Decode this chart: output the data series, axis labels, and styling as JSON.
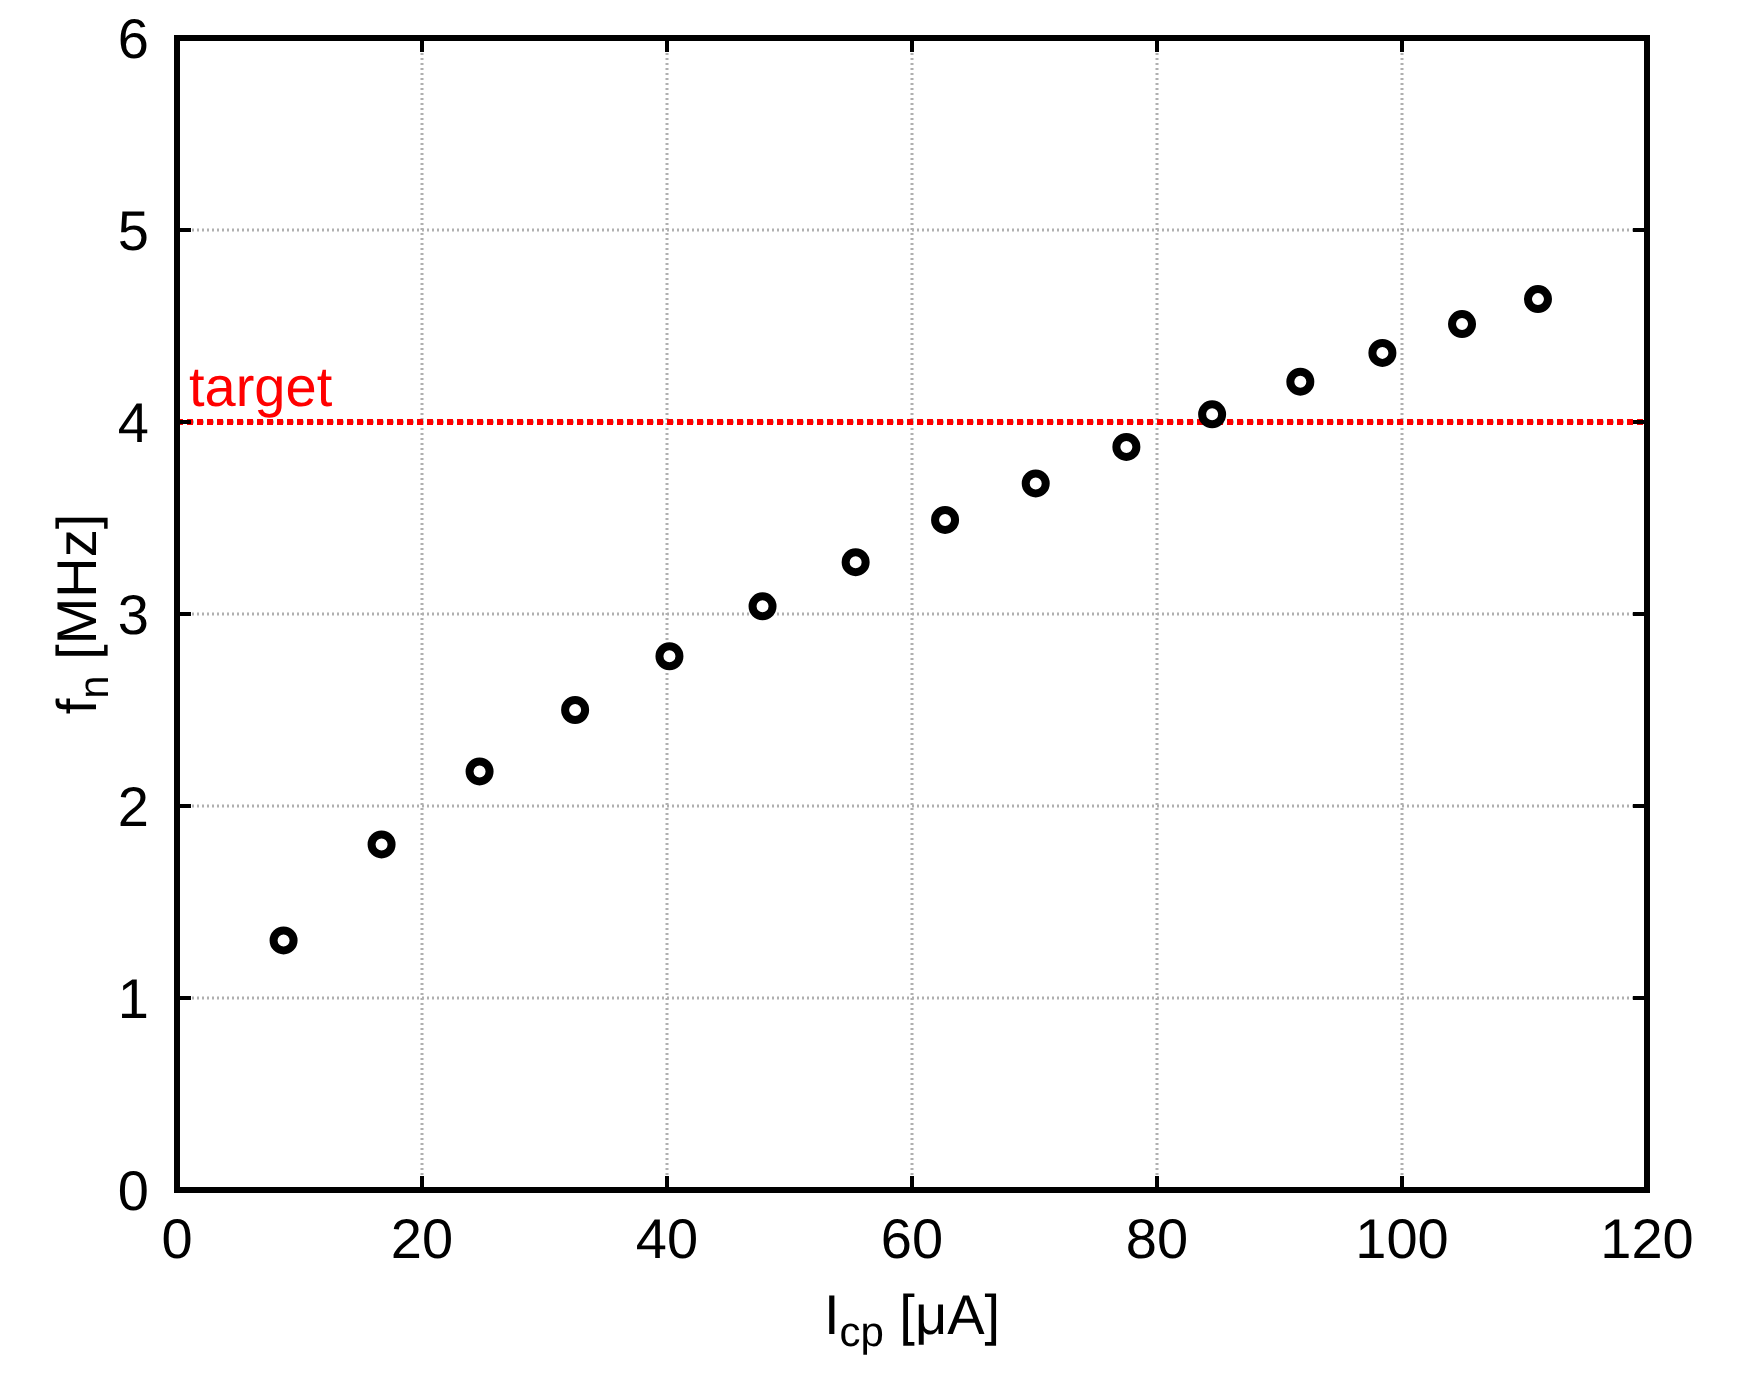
{
  "chart_data": {
    "type": "scatter",
    "xlabel": "I$_{cp}$ [μA]",
    "ylabel": "f$_{n}$ [MHz]",
    "x": [
      8.7,
      16.7,
      24.7,
      32.5,
      40.2,
      47.8,
      55.4,
      62.7,
      70.1,
      77.5,
      84.5,
      91.7,
      98.4,
      104.9,
      111.1
    ],
    "values": [
      1.3,
      1.8,
      2.18,
      2.5,
      2.78,
      3.04,
      3.27,
      3.49,
      3.68,
      3.87,
      4.04,
      4.21,
      4.36,
      4.51,
      4.64
    ],
    "color": "#000000",
    "marker": "circle",
    "xlim": [
      0,
      120
    ],
    "ylim": [
      0,
      6
    ],
    "xticks": [
      0,
      20,
      40,
      60,
      80,
      100,
      120
    ],
    "yticks": [
      0,
      1,
      2,
      3,
      4,
      5,
      6
    ],
    "grid": true,
    "ref_lines": [
      {
        "axis": "y",
        "value": 4,
        "label": "target",
        "color": "#ff0000",
        "line_style": "dotted"
      }
    ]
  }
}
